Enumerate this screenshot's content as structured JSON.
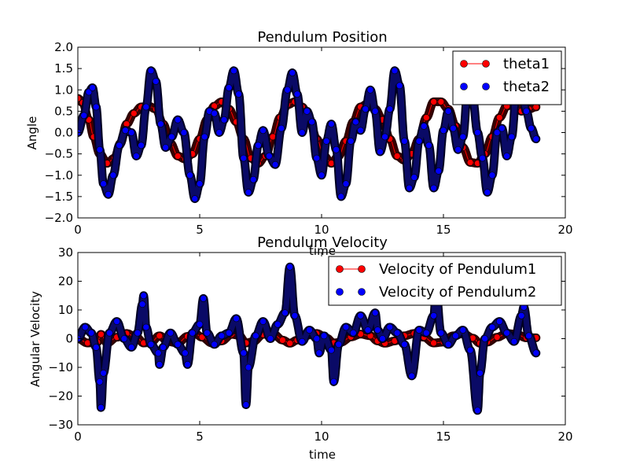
{
  "chart_data": [
    {
      "type": "line",
      "title": "Pendulum Position",
      "xlabel": "time",
      "ylabel": "Angle",
      "xlim": [
        0,
        20
      ],
      "ylim": [
        -2.0,
        2.0
      ],
      "xticks": [
        0,
        5,
        10,
        15,
        20
      ],
      "yticks": [
        -2.0,
        -1.5,
        -1.0,
        -0.5,
        0.0,
        0.5,
        1.0,
        1.5,
        2.0
      ],
      "xtick_labels": [
        "0",
        "5",
        "10",
        "15",
        "20"
      ],
      "ytick_labels": [
        "−2.0",
        "−1.5",
        "−1.0",
        "−0.5",
        "0.0",
        "0.5",
        "1.0",
        "1.5",
        "2.0"
      ],
      "grid": false,
      "legend_position": "upper right",
      "series": [
        {
          "name": "theta1",
          "color": "#ff0000",
          "fill_color": "#ff0000",
          "style": "line-with-markers",
          "x": [
            0,
            0.2,
            0.45,
            0.65,
            0.9,
            1.2,
            1.5,
            1.75,
            2.0,
            2.3,
            2.6,
            2.9,
            3.2,
            3.5,
            3.8,
            4.1,
            4.4,
            4.7,
            5.0,
            5.3,
            5.6,
            5.9,
            6.2,
            6.5,
            6.8,
            7.1,
            7.4,
            7.7,
            8.0,
            8.3,
            8.6,
            8.9,
            9.2,
            9.5,
            9.8,
            10.1,
            10.4,
            10.7,
            11.0,
            11.3,
            11.6,
            11.9,
            12.2,
            12.5,
            12.8,
            13.1,
            13.4,
            13.7,
            14.0,
            14.3,
            14.6,
            14.9,
            15.2,
            15.5,
            15.8,
            16.1,
            16.4,
            16.7,
            17.0,
            17.3,
            17.6,
            17.9,
            18.2,
            18.5,
            18.8
          ],
          "y": [
            0.8,
            0.7,
            0.3,
            -0.1,
            -0.5,
            -0.72,
            -0.6,
            -0.25,
            0.2,
            0.45,
            0.6,
            0.62,
            0.55,
            0.2,
            -0.25,
            -0.55,
            -0.62,
            -0.5,
            -0.15,
            0.3,
            0.62,
            0.72,
            0.55,
            0.25,
            -0.15,
            -0.6,
            -0.72,
            -0.55,
            -0.1,
            0.35,
            0.65,
            0.72,
            0.6,
            0.3,
            -0.15,
            -0.55,
            -0.72,
            -0.55,
            -0.2,
            0.25,
            0.6,
            0.68,
            0.55,
            0.3,
            -0.15,
            -0.55,
            -0.65,
            -0.5,
            -0.15,
            0.35,
            0.72,
            0.72,
            0.55,
            0.15,
            -0.35,
            -0.7,
            -0.72,
            -0.5,
            -0.1,
            0.35,
            0.62,
            0.7,
            0.5,
            0.55,
            0.6
          ]
        },
        {
          "name": "theta2",
          "color": "#0000ff",
          "fill_color": "#0000ff",
          "style": "markers",
          "x": [
            0,
            0.25,
            0.45,
            0.6,
            0.75,
            0.9,
            1.05,
            1.25,
            1.45,
            1.7,
            1.95,
            2.2,
            2.4,
            2.6,
            2.8,
            3.0,
            3.2,
            3.4,
            3.6,
            3.85,
            4.1,
            4.35,
            4.6,
            4.8,
            5.0,
            5.2,
            5.4,
            5.6,
            5.8,
            6.0,
            6.2,
            6.4,
            6.6,
            6.8,
            7.0,
            7.2,
            7.4,
            7.6,
            7.85,
            8.1,
            8.35,
            8.6,
            8.8,
            9.0,
            9.2,
            9.4,
            9.6,
            9.8,
            10.0,
            10.2,
            10.4,
            10.6,
            10.8,
            11.0,
            11.2,
            11.4,
            11.6,
            11.8,
            12.0,
            12.2,
            12.4,
            12.6,
            12.8,
            13.0,
            13.2,
            13.4,
            13.6,
            13.8,
            14.0,
            14.2,
            14.4,
            14.6,
            14.8,
            15.0,
            15.2,
            15.4,
            15.6,
            15.8,
            16.0,
            16.2,
            16.4,
            16.6,
            16.8,
            17.0,
            17.2,
            17.4,
            17.6,
            17.8,
            18.0,
            18.2,
            18.4,
            18.6,
            18.8
          ],
          "y": [
            0.0,
            0.4,
            0.95,
            1.05,
            0.6,
            -0.4,
            -1.2,
            -1.45,
            -1.0,
            -0.3,
            0.05,
            0.0,
            -0.55,
            -0.3,
            0.6,
            1.45,
            1.2,
            0.2,
            -0.35,
            -0.1,
            0.3,
            0.0,
            -1.0,
            -1.55,
            -1.2,
            -0.1,
            0.5,
            0.45,
            0.0,
            0.3,
            1.05,
            1.45,
            0.9,
            -0.6,
            -1.4,
            -1.1,
            -0.3,
            0.05,
            -0.55,
            -0.75,
            0.1,
            1.0,
            1.4,
            0.9,
            0.0,
            0.5,
            0.25,
            -0.6,
            -1.0,
            -0.2,
            0.2,
            -0.4,
            -1.5,
            -1.2,
            -0.2,
            0.25,
            0.05,
            0.55,
            1.0,
            0.5,
            -0.45,
            -0.1,
            0.55,
            1.45,
            1.1,
            -0.2,
            -1.3,
            -1.05,
            -0.2,
            0.15,
            -0.3,
            -1.3,
            -0.9,
            0.05,
            0.5,
            0.1,
            -0.4,
            -0.1,
            1.0,
            0.8,
            0.0,
            -0.6,
            -1.4,
            -1.0,
            0.0,
            0.1,
            -0.55,
            -0.1,
            1.0,
            1.05,
            0.5,
            0.1,
            -0.15
          ]
        }
      ]
    },
    {
      "type": "line",
      "title": "Pendulum Velocity",
      "xlabel": "time",
      "ylabel": "Angular Velocity",
      "xlim": [
        0,
        20
      ],
      "ylim": [
        -30,
        30
      ],
      "xticks": [
        0,
        5,
        10,
        15,
        20
      ],
      "yticks": [
        -30,
        -20,
        -10,
        0,
        10,
        20,
        30
      ],
      "xtick_labels": [
        "0",
        "5",
        "10",
        "15",
        "20"
      ],
      "ytick_labels": [
        "−30",
        "−20",
        "−10",
        "0",
        "10",
        "20",
        "30"
      ],
      "grid": false,
      "legend_position": "upper right",
      "series": [
        {
          "name": "Velocity of Pendulum1",
          "color": "#ff0000",
          "fill_color": "#ff0000",
          "style": "line-with-markers",
          "x": [
            0,
            0.4,
            0.8,
            0.95,
            1.2,
            1.6,
            2.0,
            2.4,
            2.7,
            3.0,
            3.35,
            3.7,
            4.1,
            4.5,
            4.8,
            5.1,
            5.5,
            5.9,
            6.3,
            6.6,
            6.9,
            7.2,
            7.6,
            8.0,
            8.4,
            8.7,
            9.0,
            9.4,
            9.8,
            10.2,
            10.5,
            10.8,
            11.2,
            11.6,
            12.0,
            12.3,
            12.6,
            13.0,
            13.4,
            13.8,
            14.2,
            14.6,
            15.0,
            15.4,
            15.8,
            16.2,
            16.5,
            16.8,
            17.2,
            17.6,
            18.0,
            18.4,
            18.8
          ],
          "y": [
            0,
            -1.5,
            -1.2,
            1.5,
            -1.5,
            0.5,
            1.8,
            0.5,
            -1.5,
            -1.2,
            1.0,
            -1.0,
            -1.5,
            0.8,
            1.8,
            0.5,
            -1.5,
            -0.8,
            1.5,
            1.2,
            -1.5,
            -1.0,
            1.5,
            1.8,
            -0.5,
            -1.6,
            -0.5,
            1.2,
            1.8,
            0.2,
            -1.5,
            -1.2,
            0.6,
            1.6,
            1.0,
            -0.8,
            -1.6,
            -0.8,
            1.0,
            1.8,
            0.5,
            -1.5,
            -1.2,
            1.0,
            1.8,
            0.2,
            -1.6,
            -1.2,
            0.5,
            1.8,
            1.5,
            0.3,
            0.3
          ]
        },
        {
          "name": "Velocity of Pendulum2",
          "color": "#0000ff",
          "fill_color": "#0000ff",
          "style": "markers",
          "x": [
            0,
            0.3,
            0.55,
            0.75,
            0.9,
            0.95,
            1.05,
            1.3,
            1.6,
            1.9,
            2.2,
            2.45,
            2.65,
            2.7,
            2.8,
            3.0,
            3.3,
            3.35,
            3.5,
            3.8,
            4.1,
            4.4,
            4.5,
            4.7,
            5.0,
            5.15,
            5.3,
            5.6,
            5.9,
            6.2,
            6.5,
            6.8,
            6.9,
            7.0,
            7.3,
            7.6,
            7.9,
            8.2,
            8.5,
            8.7,
            8.9,
            9.2,
            9.5,
            9.8,
            9.9,
            10.1,
            10.4,
            10.5,
            10.7,
            11.0,
            11.3,
            11.6,
            11.9,
            12.2,
            12.3,
            12.5,
            12.8,
            13.1,
            13.4,
            13.7,
            14.0,
            14.3,
            14.6,
            14.7,
            14.9,
            15.2,
            15.5,
            15.8,
            16.1,
            16.4,
            16.5,
            16.7,
            17.0,
            17.3,
            17.6,
            17.9,
            18.2,
            18.3,
            18.5,
            18.8
          ],
          "y": [
            0,
            4,
            2,
            -3,
            -15,
            -24,
            -12,
            2,
            6,
            0,
            -3,
            2,
            12,
            15,
            4,
            -2,
            -5,
            -9,
            -3,
            2,
            -2,
            -5,
            -9,
            2,
            5,
            14,
            2,
            -2,
            1,
            2,
            7,
            -5,
            -23,
            -10,
            1,
            6,
            0,
            5,
            9,
            25,
            8,
            -1,
            3,
            0,
            -5,
            1,
            -4,
            -15,
            -2,
            4,
            2,
            8,
            3,
            9,
            3,
            0,
            4,
            2,
            -2,
            -13,
            3,
            2,
            8,
            16,
            2,
            -2,
            1,
            3,
            -4,
            -25,
            -12,
            0,
            4,
            6,
            2,
            -1,
            8,
            11,
            1,
            -5
          ]
        }
      ]
    }
  ]
}
